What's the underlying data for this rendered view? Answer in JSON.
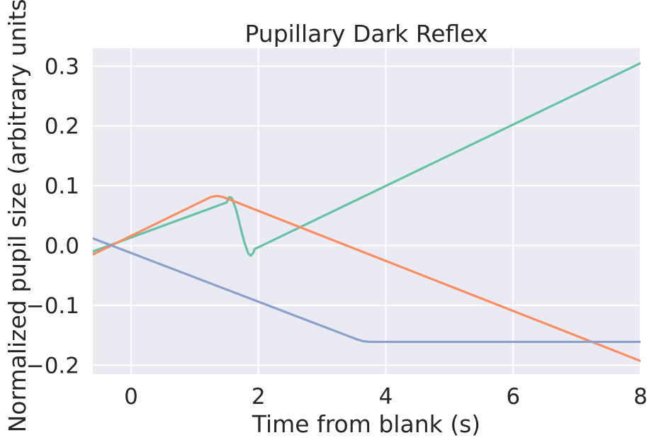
{
  "chart_data": {
    "type": "line",
    "title": "Pupillary Dark Reflex",
    "xlabel": "Time from blank (s)",
    "ylabel": "Normalized pupil size (arbitrary units)",
    "xlim": [
      -0.6,
      8.0
    ],
    "ylim": [
      -0.215,
      0.33
    ],
    "xticks": [
      0,
      2,
      4,
      6,
      8
    ],
    "xtick_labels": [
      "0",
      "2",
      "4",
      "6",
      "8"
    ],
    "yticks": [
      -0.2,
      -0.1,
      0.0,
      0.1,
      0.2,
      0.3
    ],
    "ytick_labels": [
      "−0.2",
      "−0.1",
      "0.0",
      "0.1",
      "0.2",
      "0.3"
    ],
    "grid": true,
    "background": "#eaeaf2",
    "grid_color": "#ffffff",
    "series": [
      {
        "color": "#66c2a5",
        "points": [
          [
            -0.6,
            -0.01
          ],
          [
            1.5,
            0.072
          ],
          [
            1.54,
            0.081
          ],
          [
            1.58,
            0.08
          ],
          [
            1.65,
            0.06
          ],
          [
            1.72,
            0.03
          ],
          [
            1.78,
            0.005
          ],
          [
            1.84,
            -0.013
          ],
          [
            1.88,
            -0.017
          ],
          [
            1.92,
            -0.012
          ],
          [
            1.94,
            -0.006
          ],
          [
            8.0,
            0.305
          ]
        ]
      },
      {
        "color": "#fc8d62",
        "points": [
          [
            -0.6,
            -0.015
          ],
          [
            1.25,
            0.081
          ],
          [
            1.35,
            0.083
          ],
          [
            1.45,
            0.081
          ],
          [
            8.0,
            -0.193
          ]
        ]
      },
      {
        "color": "#8da0cb",
        "points": [
          [
            -0.6,
            0.012
          ],
          [
            3.55,
            -0.157
          ],
          [
            3.65,
            -0.16
          ],
          [
            3.75,
            -0.161
          ],
          [
            8.0,
            -0.161
          ]
        ]
      }
    ]
  }
}
